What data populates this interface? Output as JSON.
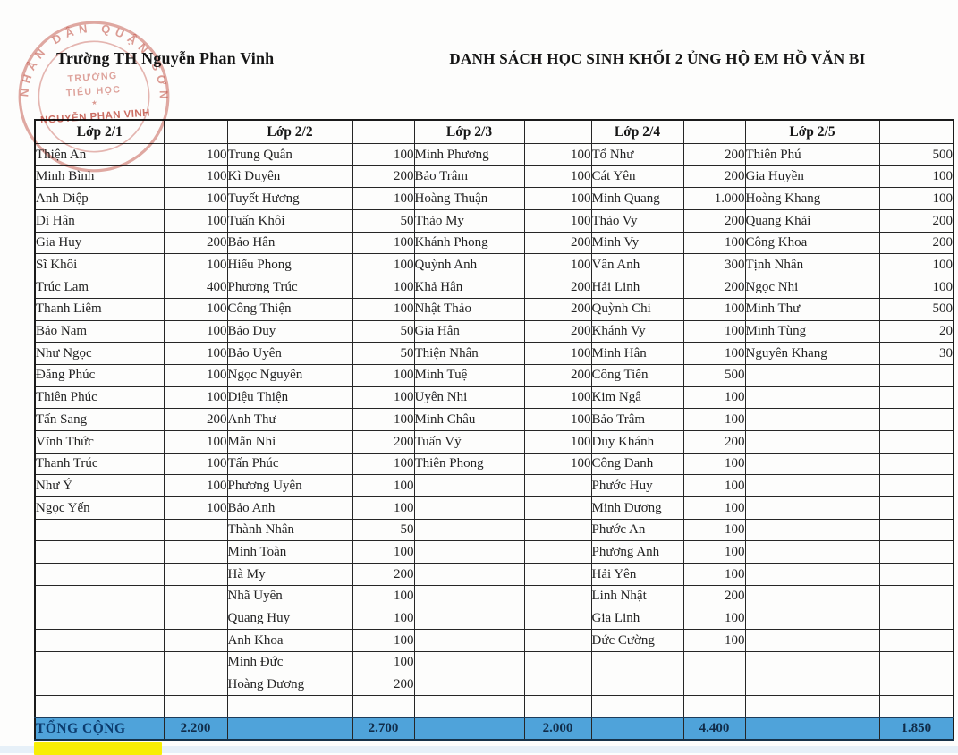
{
  "header": {
    "school_name": "Trường TH Nguyễn Phan Vinh",
    "title": "DANH SÁCH HỌC SINH KHỐI 2 ỦNG HỘ EM HỒ VĂN BI"
  },
  "stamp": {
    "ring_text": "NHÂN DÂN QUẬN SƠN",
    "line1": "TRƯỜNG",
    "line2": "TIỂU HỌC",
    "star": "★",
    "line3": "NGUYỄN PHAN VINH"
  },
  "table": {
    "total_label": "TỔNG CỘNG",
    "classes": [
      {
        "header": "Lớp 2/1",
        "total": "2.200",
        "students": [
          [
            "Thiện An",
            "100"
          ],
          [
            "Minh Bình",
            "100"
          ],
          [
            "Anh Diệp",
            "100"
          ],
          [
            "Di Hân",
            "100"
          ],
          [
            "Gia Huy",
            "200"
          ],
          [
            "Sĩ Khôi",
            "100"
          ],
          [
            "Trúc Lam",
            "400"
          ],
          [
            "Thanh Liêm",
            "100"
          ],
          [
            "Bảo Nam",
            "100"
          ],
          [
            "Như Ngọc",
            "100"
          ],
          [
            "Đăng Phúc",
            "100"
          ],
          [
            "Thiên Phúc",
            "100"
          ],
          [
            "Tấn Sang",
            "200"
          ],
          [
            "Vĩnh Thức",
            "100"
          ],
          [
            "Thanh Trúc",
            "100"
          ],
          [
            "Như Ý",
            "100"
          ],
          [
            "Ngọc Yến",
            "100"
          ]
        ]
      },
      {
        "header": "Lớp 2/2",
        "total": "2.700",
        "students": [
          [
            "Trung Quân",
            "100"
          ],
          [
            "Kì Duyên",
            "200"
          ],
          [
            "Tuyết Hương",
            "100"
          ],
          [
            "Tuấn Khôi",
            "50"
          ],
          [
            "Bảo Hân",
            "100"
          ],
          [
            "Hiếu Phong",
            "100"
          ],
          [
            "Phương Trúc",
            "100"
          ],
          [
            "Công Thiện",
            "100"
          ],
          [
            "Bảo Duy",
            "50"
          ],
          [
            "Bảo Uyên",
            "50"
          ],
          [
            "Ngọc Nguyên",
            "100"
          ],
          [
            "Diệu Thiện",
            "100"
          ],
          [
            "Anh Thư",
            "100"
          ],
          [
            "Mẫn Nhi",
            "200"
          ],
          [
            "Tấn Phúc",
            "100"
          ],
          [
            "Phương Uyên",
            "100"
          ],
          [
            "Bảo Anh",
            "100"
          ],
          [
            "Thành Nhân",
            "50"
          ],
          [
            "Minh Toàn",
            "100"
          ],
          [
            "Hà My",
            "200"
          ],
          [
            "Nhã Uyên",
            "100"
          ],
          [
            "Quang Huy",
            "100"
          ],
          [
            "Anh Khoa",
            "100"
          ],
          [
            "Minh Đức",
            "100"
          ],
          [
            "Hoàng Dương",
            "200"
          ]
        ]
      },
      {
        "header": "Lớp 2/3",
        "total": "2.000",
        "students": [
          [
            "Minh Phương",
            "100"
          ],
          [
            "Bảo Trâm",
            "100"
          ],
          [
            "Hoàng Thuận",
            "100"
          ],
          [
            "Thảo My",
            "100"
          ],
          [
            "Khánh Phong",
            "200"
          ],
          [
            "Quỳnh Anh",
            "100"
          ],
          [
            "Khả Hân",
            "200"
          ],
          [
            "Nhật Thảo",
            "200"
          ],
          [
            "Gia Hân",
            "200"
          ],
          [
            "Thiện Nhân",
            "100"
          ],
          [
            "Minh Tuệ",
            "200"
          ],
          [
            "Uyên Nhi",
            "100"
          ],
          [
            "Minh Châu",
            "100"
          ],
          [
            "Tuấn Vỹ",
            "100"
          ],
          [
            "Thiên Phong",
            "100"
          ]
        ]
      },
      {
        "header": "Lớp 2/4",
        "total": "4.400",
        "students": [
          [
            "Tổ Như",
            "200"
          ],
          [
            "Cát Yên",
            "200"
          ],
          [
            "Minh Quang",
            "1.000"
          ],
          [
            "Thảo Vy",
            "200"
          ],
          [
            "Minh Vy",
            "100"
          ],
          [
            "Vân Anh",
            "300"
          ],
          [
            "Hải Linh",
            "200"
          ],
          [
            "Quỳnh Chi",
            "100"
          ],
          [
            "Khánh Vy",
            "100"
          ],
          [
            "Minh Hân",
            "100"
          ],
          [
            "Công Tiến",
            "500"
          ],
          [
            "Kim Ngâ",
            "100"
          ],
          [
            "Bảo Trâm",
            "100"
          ],
          [
            "Duy Khánh",
            "200"
          ],
          [
            "Công Danh",
            "100"
          ],
          [
            "Phước Huy",
            "100"
          ],
          [
            "Minh Dương",
            "100"
          ],
          [
            "Phước An",
            "100"
          ],
          [
            "Phương Anh",
            "100"
          ],
          [
            "Hải Yên",
            "100"
          ],
          [
            "Linh Nhật",
            "200"
          ],
          [
            "Gia Linh",
            "100"
          ],
          [
            "Đức Cường",
            "100"
          ]
        ]
      },
      {
        "header": "Lớp 2/5",
        "total": "1.850",
        "students": [
          [
            "Thiên Phú",
            "500"
          ],
          [
            "Gia Huyền",
            "100"
          ],
          [
            "Hoàng Khang",
            "100"
          ],
          [
            "Quang Khải",
            "200"
          ],
          [
            "Công Khoa",
            "200"
          ],
          [
            "Tịnh Nhân",
            "100"
          ],
          [
            "Ngọc Nhi",
            "100"
          ],
          [
            "Minh Thư",
            "500"
          ],
          [
            "Minh Tùng",
            "20"
          ],
          [
            "Nguyên Khang",
            "30"
          ]
        ]
      }
    ]
  },
  "colors": {
    "total_row_bg": "#4fa3da",
    "total_text": "#0c3c6e",
    "highlight_yellow": "#f8ee05",
    "stamp_red": "#c14b3e"
  }
}
